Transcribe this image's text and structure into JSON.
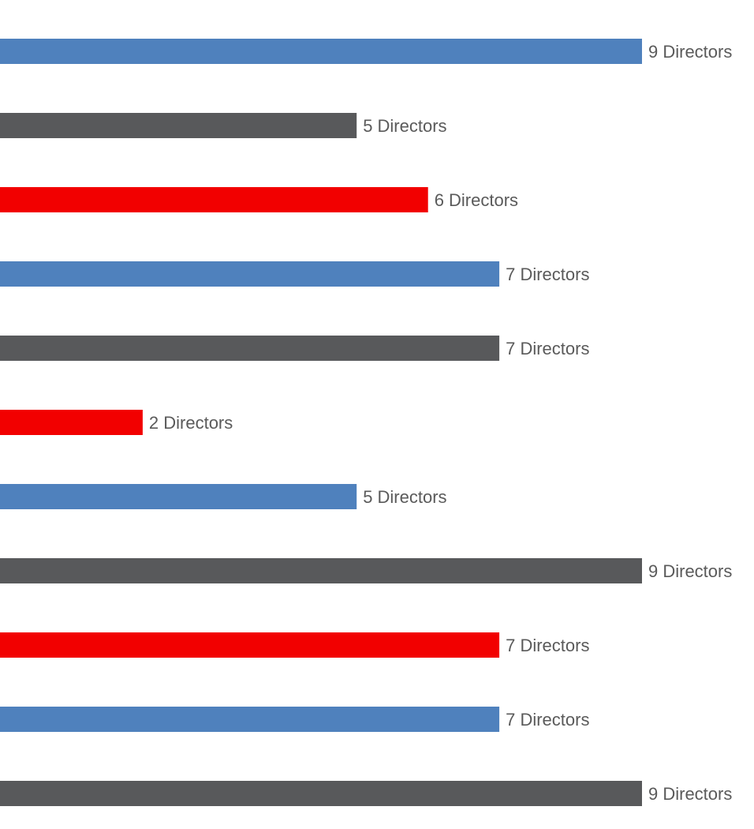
{
  "chart_data": {
    "type": "bar",
    "orientation": "horizontal",
    "title": "",
    "xlabel": "",
    "ylabel": "",
    "xlim": [
      0,
      9
    ],
    "grid": false,
    "legend": "none",
    "unit_suffix": "Directors",
    "bars": [
      {
        "value": 9,
        "label": "9 Directors",
        "color": "#4f81bd"
      },
      {
        "value": 5,
        "label": "5 Directors",
        "color": "#58595b"
      },
      {
        "value": 6,
        "label": "6 Directors",
        "color": "#f20000"
      },
      {
        "value": 7,
        "label": "7 Directors",
        "color": "#4f81bd"
      },
      {
        "value": 7,
        "label": "7 Directors",
        "color": "#58595b"
      },
      {
        "value": 2,
        "label": "2 Directors",
        "color": "#f20000"
      },
      {
        "value": 5,
        "label": "5 Directors",
        "color": "#4f81bd"
      },
      {
        "value": 9,
        "label": "9 Directors",
        "color": "#58595b"
      },
      {
        "value": 7,
        "label": "7 Directors",
        "color": "#f20000"
      },
      {
        "value": 7,
        "label": "7 Directors",
        "color": "#4f81bd"
      },
      {
        "value": 9,
        "label": "9 Directors",
        "color": "#58595b"
      }
    ]
  }
}
